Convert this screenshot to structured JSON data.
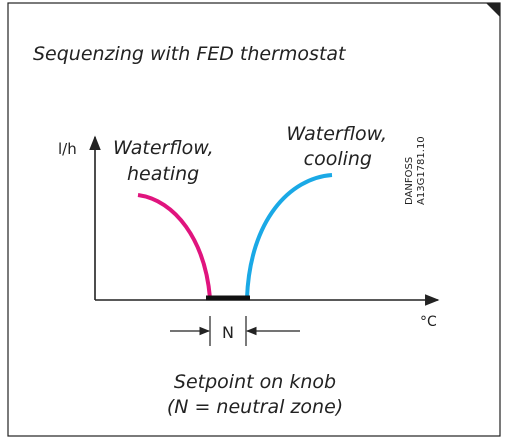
{
  "title": "Sequenzing with FED thermostat",
  "y_axis_label": "l/h",
  "x_axis_label": "°C",
  "heating_label": [
    "Waterflow,",
    "heating"
  ],
  "cooling_label": [
    "Waterflow,",
    "cooling"
  ],
  "neutral_zone_label": "N",
  "code": [
    "DANFOSS",
    "A13G1781.10"
  ],
  "caption": [
    "Setpoint on knob",
    "(N = neutral zone)"
  ]
}
